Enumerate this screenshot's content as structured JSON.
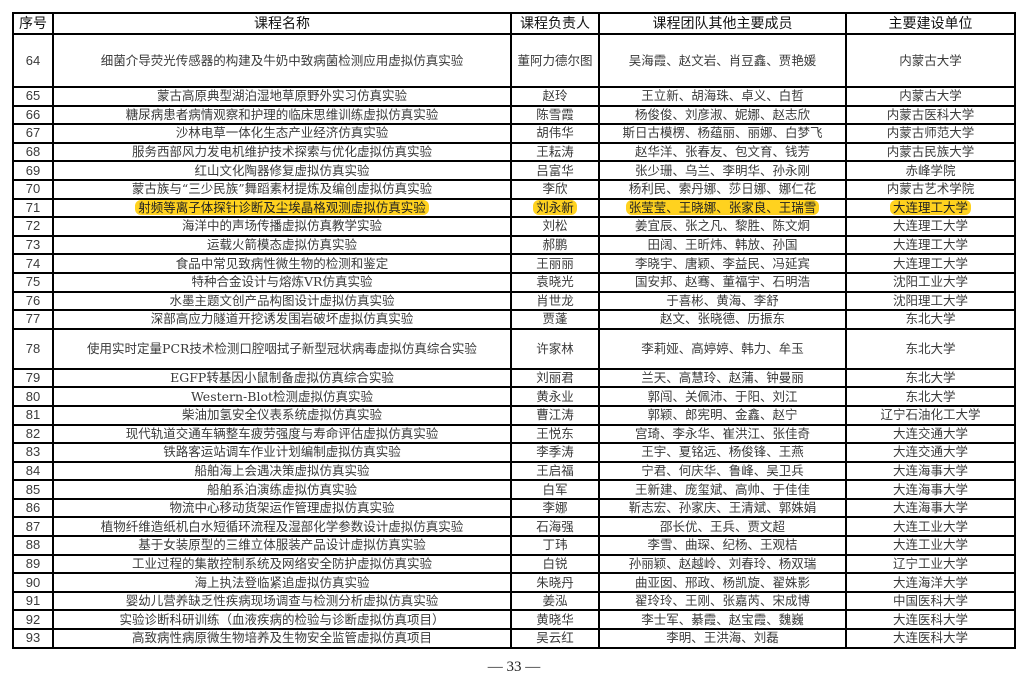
{
  "headers": [
    "序号",
    "课程名称",
    "课程负责人",
    "课程团队其他主要成员",
    "主要建设单位"
  ],
  "highlight_color": "#ffd21f",
  "rows": [
    {
      "no": "64",
      "name": "细菌介导荧光传感器的构建及牛奶中致病菌检测应用虚拟仿真实验",
      "lead": "董阿力德尔图",
      "members": "吴海霞、赵文岩、肖豆鑫、贾艳媛",
      "unit": "内蒙古大学"
    },
    {
      "no": "65",
      "name": "蒙古高原典型湖泊湿地草原野外实习仿真实验",
      "lead": "赵玲",
      "members": "王立新、胡海珠、卓义、白哲",
      "unit": "内蒙古大学"
    },
    {
      "no": "66",
      "name": "糖尿病患者病情观察和护理的临床思维训练虚拟仿真实验",
      "lead": "陈雪霞",
      "members": "杨俊俊、刘彦淑、妮娜、赵志欣",
      "unit": "内蒙古医科大学"
    },
    {
      "no": "67",
      "name": "沙林电草一体化生态产业经济仿真实验",
      "lead": "胡伟华",
      "members": "斯日古模楞、杨蕴丽、丽娜、白梦飞",
      "unit": "内蒙古师范大学"
    },
    {
      "no": "68",
      "name": "服务西部风力发电机维护技术探索与优化虚拟仿真实验",
      "lead": "王耘涛",
      "members": "赵华洋、张春友、包文育、钱芳",
      "unit": "内蒙古民族大学"
    },
    {
      "no": "69",
      "name": "红山文化陶器修复虚拟仿真实验",
      "lead": "吕富华",
      "members": "张少珊、乌兰、李明华、孙永刚",
      "unit": "赤峰学院"
    },
    {
      "no": "70",
      "name": "蒙古族与“三少民族”舞蹈素材提炼及编创虚拟仿真实验",
      "lead": "李欣",
      "members": "杨利民、索丹娜、莎日娜、娜仁花",
      "unit": "内蒙古艺术学院"
    },
    {
      "no": "71",
      "name": "射频等离子体探针诊断及尘埃晶格观测虚拟仿真实验",
      "lead": "刘永新",
      "members": "张莹莹、王晓娜、张家良、王瑞雪",
      "unit": "大连理工大学",
      "highlighted": true
    },
    {
      "no": "72",
      "name": "海洋中的声场传播虚拟仿真教学实验",
      "lead": "刘松",
      "members": "姜宜辰、张之凡、黎胜、陈文炯",
      "unit": "大连理工大学"
    },
    {
      "no": "73",
      "name": "运载火箭模态虚拟仿真实验",
      "lead": "郝鹏",
      "members": "田阔、王昕炜、韩放、孙国",
      "unit": "大连理工大学"
    },
    {
      "no": "74",
      "name": "食品中常见致病性微生物的检测和鉴定",
      "lead": "王丽丽",
      "members": "李晓宇、唐颖、李益民、冯延宾",
      "unit": "大连理工大学"
    },
    {
      "no": "75",
      "name": "特种合金设计与熔炼VR仿真实验",
      "lead": "袁晓光",
      "members": "国安邦、赵骞、董福宇、石明浩",
      "unit": "沈阳工业大学"
    },
    {
      "no": "76",
      "name": "水墨主题文创产品构图设计虚拟仿真实验",
      "lead": "肖世龙",
      "members": "于喜彬、黄海、李舒",
      "unit": "沈阳理工大学"
    },
    {
      "no": "77",
      "name": "深部高应力隧道开挖诱发围岩破坏虚拟仿真实验",
      "lead": "贾蓬",
      "members": "赵文、张晓德、历振东",
      "unit": "东北大学"
    },
    {
      "no": "78",
      "name": "使用实时定量PCR技术检测口腔咽拭子新型冠状病毒虚拟仿真综合实验",
      "lead": "许家林",
      "members": "李莉娅、高婷婷、韩力、牟玉",
      "unit": "东北大学"
    },
    {
      "no": "79",
      "name": "EGFP转基因小鼠制备虚拟仿真综合实验",
      "lead": "刘丽君",
      "members": "兰天、高慧玲、赵蒲、钟曼丽",
      "unit": "东北大学"
    },
    {
      "no": "80",
      "name": "Western-Blot检测虚拟仿真实验",
      "lead": "黄永业",
      "members": "郭闯、关佩沛、于阳、刘江",
      "unit": "东北大学"
    },
    {
      "no": "81",
      "name": "柴油加氢安全仪表系统虚拟仿真实验",
      "lead": "曹江涛",
      "members": "郭颖、郎宪明、金鑫、赵宁",
      "unit": "辽宁石油化工大学"
    },
    {
      "no": "82",
      "name": "现代轨道交通车辆整车疲劳强度与寿命评估虚拟仿真实验",
      "lead": "王悦东",
      "members": "宫琦、李永华、崔洪江、张佳奇",
      "unit": "大连交通大学"
    },
    {
      "no": "83",
      "name": "铁路客运站调车作业计划编制虚拟仿真实验",
      "lead": "李季涛",
      "members": "王宇、夏铭远、杨俊锋、王燕",
      "unit": "大连交通大学"
    },
    {
      "no": "84",
      "name": "船舶海上会遇决策虚拟仿真实验",
      "lead": "王启福",
      "members": "宁君、何庆华、鲁峰、吴卫兵",
      "unit": "大连海事大学"
    },
    {
      "no": "85",
      "name": "船舶系泊演练虚拟仿真实验",
      "lead": "白军",
      "members": "王新建、庞玺斌、高帅、于佳佳",
      "unit": "大连海事大学"
    },
    {
      "no": "86",
      "name": "物流中心移动货架运作管理虚拟仿真实验",
      "lead": "李娜",
      "members": "靳志宏、孙家庆、王清斌、郭姝娟",
      "unit": "大连海事大学"
    },
    {
      "no": "87",
      "name": "植物纤维造纸机白水短循环流程及湿部化学参数设计虚拟仿真实验",
      "lead": "石海强",
      "members": "邵长优、王兵、贾文超",
      "unit": "大连工业大学"
    },
    {
      "no": "88",
      "name": "基于女装原型的三维立体服装产品设计虚拟仿真实验",
      "lead": "丁玮",
      "members": "李雪、曲琛、纪杨、王观桔",
      "unit": "大连工业大学"
    },
    {
      "no": "89",
      "name": "工业过程的集散控制系统及网络安全防护虚拟仿真实验",
      "lead": "白锐",
      "members": "孙丽颖、赵越岭、刘春玲、杨双瑞",
      "unit": "辽宁工业大学"
    },
    {
      "no": "90",
      "name": "海上执法登临紧追虚拟仿真实验",
      "lead": "朱晓丹",
      "members": "曲亚囡、邢政、杨凯旋、翟姝影",
      "unit": "大连海洋大学"
    },
    {
      "no": "91",
      "name": "婴幼儿营养缺乏性疾病现场调查与检测分析虚拟仿真实验",
      "lead": "姜泓",
      "members": "翟玲玲、王刚、张嘉芮、宋成博",
      "unit": "中国医科大学"
    },
    {
      "no": "92",
      "name": "实验诊断科研训练（血液疾病的检验与诊断虚拟仿真项目）",
      "lead": "黄晓华",
      "members": "李士军、綦霞、赵宝霞、魏巍",
      "unit": "大连医科大学"
    },
    {
      "no": "93",
      "name": "高致病性病原微生物培养及生物安全监管虚拟仿真项目",
      "lead": "吴云红",
      "members": "李明、王洪海、刘磊",
      "unit": "大连医科大学"
    }
  ],
  "footer": {
    "page": "— 33 —"
  }
}
